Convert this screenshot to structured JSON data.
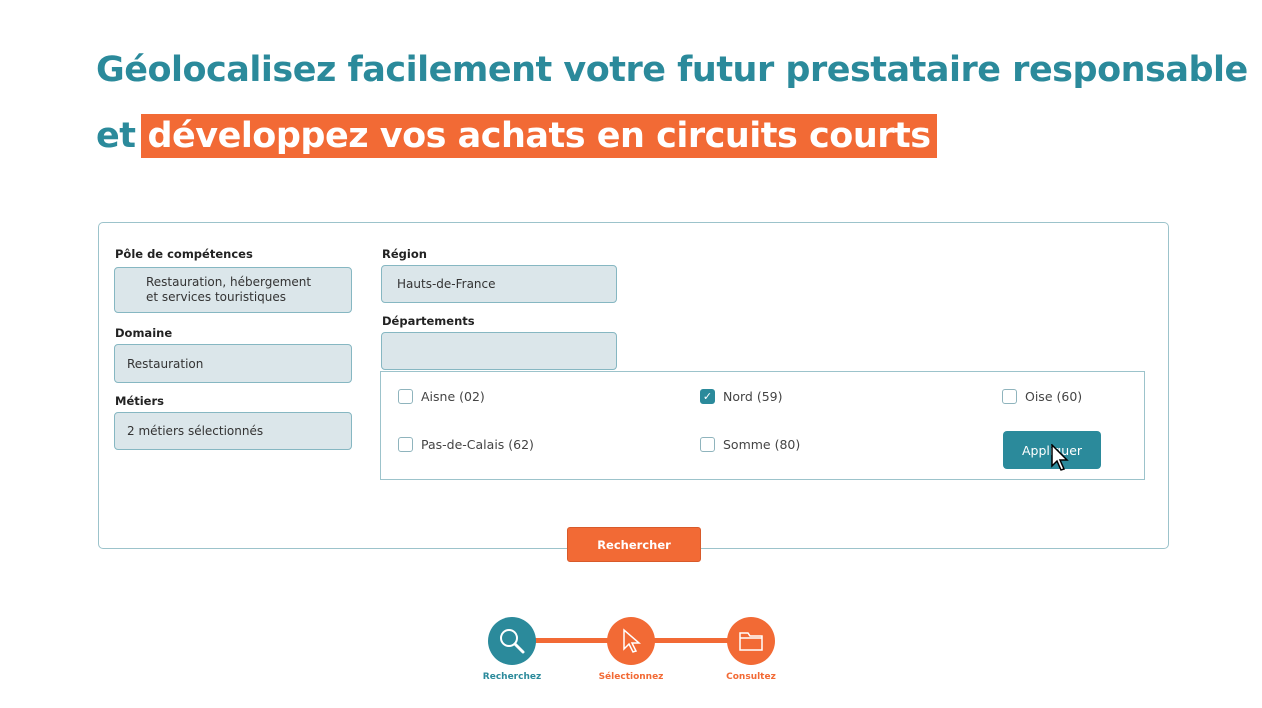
{
  "headline": {
    "line1": "Géolocalisez facilement votre futur prestataire responsable",
    "line2_prefix": "et",
    "line2_highlight": "développez vos achats en circuits courts"
  },
  "form": {
    "pole": {
      "label": "Pôle de compétences",
      "value_line1": "Restauration, hébergement",
      "value_line2": "et services touristiques"
    },
    "domaine": {
      "label": "Domaine",
      "value": "Restauration"
    },
    "metiers": {
      "label": "Métiers",
      "value": "2 métiers sélectionnés"
    },
    "region": {
      "label": "Région",
      "value": "Hauts-de-France"
    },
    "departements": {
      "label": "Départements",
      "value": "",
      "options": [
        {
          "label": "Aisne (02)",
          "checked": false
        },
        {
          "label": "Nord (59)",
          "checked": true
        },
        {
          "label": "Oise (60)",
          "checked": false
        },
        {
          "label": "Pas-de-Calais (62)",
          "checked": false
        },
        {
          "label": "Somme (80)",
          "checked": false
        }
      ],
      "apply_label": "Appliquer"
    },
    "search_label": "Rechercher"
  },
  "steps": [
    {
      "label": "Recherchez",
      "icon": "magnifier-icon",
      "color": "#2b8a9b"
    },
    {
      "label": "Sélectionnez",
      "icon": "cursor-icon",
      "color": "#f26a35"
    },
    {
      "label": "Consultez",
      "icon": "folder-icon",
      "color": "#f26a35"
    }
  ],
  "colors": {
    "teal": "#2b8a9b",
    "orange": "#f26a35"
  }
}
